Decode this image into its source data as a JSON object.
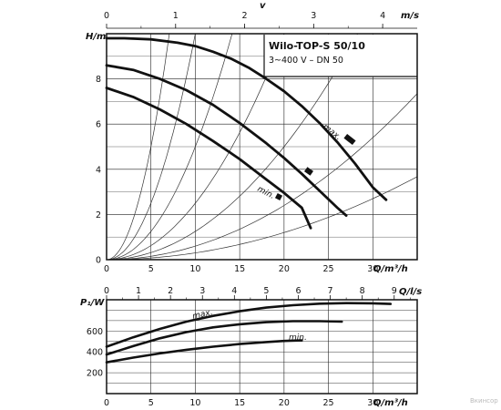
{
  "chart_data": [
    {
      "type": "line",
      "title": "Wilo-TOP-S 50/10",
      "subtitle": "3~400 V – DN 50",
      "xlabel": "Q/m³/h",
      "ylabel": "H/m",
      "top_axis_label": "v",
      "top_axis_unit": "m/s",
      "xlim": [
        0,
        35
      ],
      "ylim": [
        0,
        10
      ],
      "top_axis_lim": [
        0,
        4.5
      ],
      "x_ticks": [
        0,
        5,
        10,
        15,
        20,
        25,
        30
      ],
      "y_ticks": [
        0,
        2,
        4,
        6,
        8
      ],
      "top_ticks": [
        0,
        1,
        2,
        3,
        4
      ],
      "grid": true,
      "series": [
        {
          "name": "max.",
          "x": [
            0,
            2,
            5,
            8,
            10,
            12,
            14,
            16,
            18,
            20,
            22,
            24,
            26,
            28,
            30,
            31.5
          ],
          "y": [
            9.8,
            9.8,
            9.75,
            9.6,
            9.45,
            9.2,
            8.9,
            8.5,
            8.0,
            7.45,
            6.8,
            6.05,
            5.2,
            4.25,
            3.2,
            2.65
          ]
        },
        {
          "name": "",
          "x": [
            0,
            3,
            6,
            9,
            12,
            15,
            18,
            20,
            22,
            24,
            26,
            27
          ],
          "y": [
            8.6,
            8.4,
            8.0,
            7.5,
            6.85,
            6.05,
            5.15,
            4.5,
            3.8,
            3.05,
            2.3,
            1.95
          ]
        },
        {
          "name": "min.",
          "x": [
            0,
            3,
            6,
            9,
            12,
            15,
            18,
            20,
            22,
            23
          ],
          "y": [
            7.6,
            7.2,
            6.65,
            6.0,
            5.25,
            4.45,
            3.55,
            2.95,
            2.3,
            1.4
          ]
        }
      ],
      "annotations": [
        "max.",
        "min."
      ]
    },
    {
      "type": "line",
      "xlabel": "Q/m³/h",
      "ylabel": "P₁/W",
      "top_axis_unit": "Q/l/s",
      "xlim": [
        0,
        35
      ],
      "ylim": [
        0,
        900
      ],
      "top_axis_lim": [
        0,
        9.72
      ],
      "x_ticks": [
        0,
        5,
        10,
        15,
        20,
        25,
        30
      ],
      "y_ticks": [
        200,
        400,
        600
      ],
      "top_ticks": [
        0,
        1,
        2,
        3,
        4,
        5,
        6,
        7,
        8,
        9
      ],
      "grid": true,
      "series": [
        {
          "name": "max.",
          "x": [
            0,
            3,
            6,
            9,
            12,
            15,
            18,
            21,
            24,
            27,
            30,
            32
          ],
          "y": [
            450,
            540,
            620,
            690,
            745,
            790,
            825,
            848,
            862,
            868,
            866,
            860
          ]
        },
        {
          "name": "",
          "x": [
            0,
            3,
            6,
            9,
            12,
            15,
            18,
            21,
            24,
            26.5
          ],
          "y": [
            375,
            455,
            530,
            590,
            635,
            665,
            685,
            695,
            695,
            690
          ]
        },
        {
          "name": "min.",
          "x": [
            0,
            3,
            6,
            9,
            12,
            15,
            18,
            20,
            22
          ],
          "y": [
            300,
            345,
            385,
            420,
            450,
            475,
            495,
            505,
            510
          ]
        }
      ],
      "annotations": [
        "max.",
        "min."
      ]
    }
  ],
  "watermark": "Вкинсор"
}
